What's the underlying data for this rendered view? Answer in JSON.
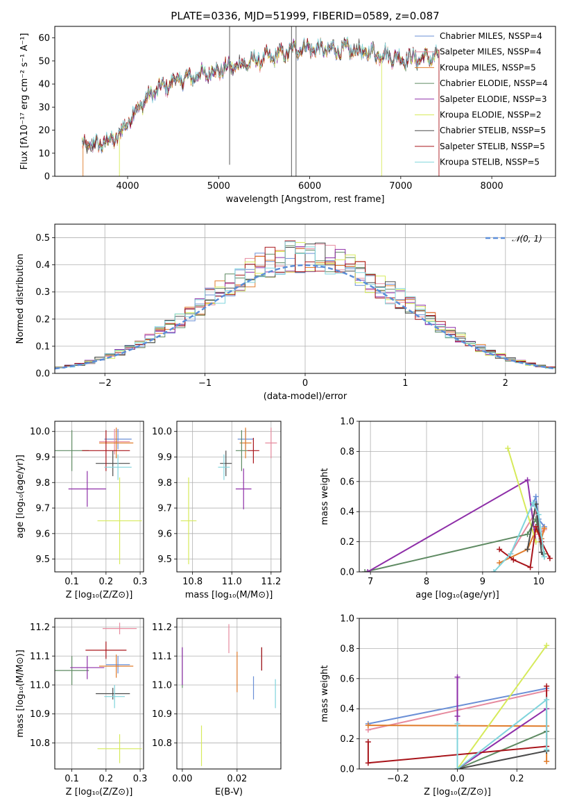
{
  "title": "PLATE=0336, MJD=51999, FIBERID=0589, z=0.087",
  "colors": {
    "chabrier_miles": "#6a8fd6",
    "salpeter_miles": "#e68a9e",
    "kroupa_miles": "#e07b2a",
    "chabrier_elodie": "#5e8a62",
    "salpeter_elodie": "#8e2ea8",
    "kroupa_elodie": "#d6ea5a",
    "chabrier_stelib": "#4a4a4a",
    "salpeter_stelib": "#a8141a",
    "kroupa_stelib": "#7fd4dc",
    "normal": "#5b8ed8",
    "grid": "#b0b0b0"
  },
  "chart_data": [
    {
      "type": "line",
      "name": "spectrum",
      "xlabel": "wavelength [Angstrom, rest frame]",
      "ylabel": "Flux [fλ10⁻¹⁷ erg cm⁻² s⁻¹ A⁻¹]",
      "xlim": [
        3200,
        8700
      ],
      "ylim": [
        0,
        65
      ],
      "xticks": [
        4000,
        5000,
        6000,
        7000,
        8000
      ],
      "yticks": [
        0,
        10,
        20,
        30,
        40,
        50,
        60
      ],
      "grid": false,
      "legend_position": "top-right",
      "legend": [
        "Chabrier MILES, N_SSP=4",
        "Salpeter MILES, N_SSP=4",
        "Kroupa MILES, N_SSP=5",
        "Chabrier ELODIE, N_SSP=4",
        "Salpeter ELODIE, N_SSP=3",
        "Kroupa ELODIE, N_SSP=2",
        "Chabrier STELIB, N_SSP=5",
        "Salpeter STELIB, N_SSP=5",
        "Kroupa STELIB, N_SSP=5"
      ],
      "continuum": [
        [
          3500,
          13
        ],
        [
          3700,
          14
        ],
        [
          3900,
          17
        ],
        [
          4000,
          24
        ],
        [
          4100,
          29
        ],
        [
          4300,
          37
        ],
        [
          4500,
          41
        ],
        [
          4800,
          44
        ],
        [
          5100,
          47
        ],
        [
          5400,
          50
        ],
        [
          5700,
          53
        ],
        [
          5900,
          56
        ],
        [
          6100,
          55
        ],
        [
          6400,
          55
        ],
        [
          6600,
          54
        ],
        [
          6800,
          53
        ],
        [
          7000,
          51
        ],
        [
          7200,
          51
        ],
        [
          7400,
          52
        ]
      ],
      "spikes": [
        {
          "x": 5120,
          "y1": 5,
          "y2": 65,
          "series": "chabrier_stelib"
        },
        {
          "x": 5800,
          "y1": 0,
          "y2": 65,
          "series": "chabrier_stelib"
        },
        {
          "x": 5850,
          "y1": 0,
          "y2": 65,
          "series": "chabrier_stelib"
        },
        {
          "x": 6790,
          "y1": 0,
          "y2": 52,
          "series": "kroupa_elodie"
        },
        {
          "x": 7420,
          "y1": 0,
          "y2": 55,
          "series": "salpeter_stelib"
        },
        {
          "x": 3910,
          "y1": 0,
          "y2": 17,
          "series": "kroupa_elodie"
        },
        {
          "x": 3510,
          "y1": 0,
          "y2": 14,
          "series": "kroupa_miles"
        }
      ]
    },
    {
      "type": "histogram",
      "name": "residuals",
      "xlabel": "(data-model)/error",
      "ylabel": "Normed distribution",
      "xlim": [
        -2.5,
        2.5
      ],
      "ylim": [
        0,
        0.55
      ],
      "xticks": [
        -2,
        -1,
        0,
        1,
        2
      ],
      "yticks": [
        0.0,
        0.1,
        0.2,
        0.3,
        0.4,
        0.5
      ],
      "grid": true,
      "legend_position": "top-right",
      "legend": [
        "𝒩(0, 1)"
      ],
      "bin_width": 0.1,
      "normal_curve": {
        "mean": 0,
        "sigma": 1
      }
    },
    {
      "type": "scatter",
      "name": "age_vs_Z",
      "xlabel": "Z [log₁₀(Z/Z⊙)]",
      "ylabel": "age  [log₁₀(age/yr)]",
      "xlim": [
        0.05,
        0.31
      ],
      "ylim": [
        9.45,
        10.04
      ],
      "xticks": [
        0.1,
        0.2,
        0.3
      ],
      "yticks": [
        9.5,
        9.6,
        9.7,
        9.8,
        9.9,
        10.0
      ],
      "grid": true,
      "points": [
        {
          "s": "chabrier_miles",
          "x": 0.235,
          "y": 9.97,
          "xerr": 0.04,
          "yerr": 0.04
        },
        {
          "s": "salpeter_miles",
          "x": 0.225,
          "y": 9.96,
          "xerr": 0.045,
          "yerr": 0.05
        },
        {
          "s": "kroupa_miles",
          "x": 0.23,
          "y": 9.955,
          "xerr": 0.05,
          "yerr": 0.06
        },
        {
          "s": "chabrier_elodie",
          "x": 0.1,
          "y": 9.925,
          "xerr": 0.05,
          "yerr": 0.08
        },
        {
          "s": "salpeter_elodie",
          "x": 0.145,
          "y": 9.775,
          "xerr": 0.055,
          "yerr": 0.07
        },
        {
          "s": "kroupa_elodie",
          "x": 0.24,
          "y": 9.65,
          "xerr": 0.065,
          "yerr": 0.17
        },
        {
          "s": "chabrier_stelib",
          "x": 0.22,
          "y": 9.875,
          "xerr": 0.05,
          "yerr": 0.05
        },
        {
          "s": "salpeter_stelib",
          "x": 0.2,
          "y": 9.925,
          "xerr": 0.07,
          "yerr": 0.08
        },
        {
          "s": "kroupa_stelib",
          "x": 0.235,
          "y": 9.86,
          "xerr": 0.04,
          "yerr": 0.05
        }
      ]
    },
    {
      "type": "scatter",
      "name": "age_vs_mass",
      "xlabel": "mass [log₁₀(M/M⊙)]",
      "ylabel": "",
      "xlim": [
        10.72,
        11.25
      ],
      "ylim": [
        9.45,
        10.04
      ],
      "xticks": [
        10.8,
        11.0,
        11.2
      ],
      "yticks": [
        9.5,
        9.6,
        9.7,
        9.8,
        9.9,
        10.0
      ],
      "grid": true,
      "points": [
        {
          "s": "chabrier_miles",
          "x": 11.07,
          "y": 9.97,
          "xerr": 0.04,
          "yerr": 0.04
        },
        {
          "s": "salpeter_miles",
          "x": 11.2,
          "y": 9.955,
          "xerr": 0.03,
          "yerr": 0.06
        },
        {
          "s": "kroupa_miles",
          "x": 11.07,
          "y": 9.955,
          "xerr": 0.03,
          "yerr": 0.06
        },
        {
          "s": "chabrier_elodie",
          "x": 11.05,
          "y": 9.925,
          "xerr": 0.03,
          "yerr": 0.08
        },
        {
          "s": "salpeter_elodie",
          "x": 11.06,
          "y": 9.775,
          "xerr": 0.04,
          "yerr": 0.08
        },
        {
          "s": "kroupa_elodie",
          "x": 10.78,
          "y": 9.65,
          "xerr": 0.04,
          "yerr": 0.17
        },
        {
          "s": "chabrier_stelib",
          "x": 10.97,
          "y": 9.875,
          "xerr": 0.03,
          "yerr": 0.05
        },
        {
          "s": "salpeter_stelib",
          "x": 11.11,
          "y": 9.925,
          "xerr": 0.03,
          "yerr": 0.05
        },
        {
          "s": "kroupa_stelib",
          "x": 10.96,
          "y": 9.86,
          "xerr": 0.03,
          "yerr": 0.05
        }
      ]
    },
    {
      "type": "line",
      "name": "massweight_vs_age",
      "xlabel": "age  [log₁₀(age/yr)]",
      "ylabel": "mass weight",
      "xlim": [
        6.8,
        10.3
      ],
      "ylim": [
        0,
        1.0
      ],
      "xticks": [
        7,
        8,
        9,
        10
      ],
      "yticks": [
        0.0,
        0.2,
        0.4,
        0.6,
        0.8,
        1.0
      ],
      "grid": true,
      "series": [
        {
          "s": "chabrier_miles",
          "x": [
            9.9,
            9.95,
            10.0,
            10.1
          ],
          "y": [
            0.45,
            0.5,
            0.35,
            0.3
          ]
        },
        {
          "s": "salpeter_miles",
          "x": [
            9.5,
            9.95,
            10.0,
            10.1
          ],
          "y": [
            0.12,
            0.4,
            0.25,
            0.28
          ]
        },
        {
          "s": "kroupa_miles",
          "x": [
            9.3,
            9.8,
            9.95,
            10.05,
            10.1
          ],
          "y": [
            0.06,
            0.15,
            0.28,
            0.22,
            0.29
          ]
        },
        {
          "s": "chabrier_elodie",
          "x": [
            6.9,
            9.8,
            9.95,
            10.1
          ],
          "y": [
            0.0,
            0.25,
            0.35,
            0.12
          ]
        },
        {
          "s": "salpeter_elodie",
          "x": [
            6.95,
            9.8,
            9.95
          ],
          "y": [
            0.0,
            0.61,
            0.2
          ]
        },
        {
          "s": "kroupa_elodie",
          "x": [
            9.45,
            9.95
          ],
          "y": [
            0.82,
            0.2
          ]
        },
        {
          "s": "chabrier_stelib",
          "x": [
            9.8,
            9.95,
            10.05,
            10.1
          ],
          "y": [
            0.15,
            0.45,
            0.13,
            0.1
          ]
        },
        {
          "s": "salpeter_stelib",
          "x": [
            9.3,
            9.55,
            9.85,
            9.95,
            10.05,
            10.2
          ],
          "y": [
            0.15,
            0.08,
            0.03,
            0.3,
            0.2,
            0.09
          ]
        },
        {
          "s": "kroupa_stelib",
          "x": [
            9.2,
            9.5,
            9.9,
            10.0,
            10.1
          ],
          "y": [
            0.0,
            0.12,
            0.46,
            0.38,
            0.1
          ]
        }
      ]
    },
    {
      "type": "scatter",
      "name": "mass_vs_Z",
      "xlabel": "Z [log₁₀(Z/Z⊙)]",
      "ylabel": "mass [log₁₀(M/M⊙)]",
      "xlim": [
        0.05,
        0.31
      ],
      "ylim": [
        10.71,
        11.23
      ],
      "xticks": [
        0.1,
        0.2,
        0.3
      ],
      "yticks": [
        10.8,
        10.9,
        11.0,
        11.1,
        11.2
      ],
      "grid": true,
      "points": [
        {
          "s": "chabrier_miles",
          "x": 0.235,
          "y": 11.07,
          "xerr": 0.035,
          "yerr": 0.03
        },
        {
          "s": "salpeter_miles",
          "x": 0.24,
          "y": 11.195,
          "xerr": 0.05,
          "yerr": 0.02
        },
        {
          "s": "kroupa_miles",
          "x": 0.23,
          "y": 11.065,
          "xerr": 0.05,
          "yerr": 0.04
        },
        {
          "s": "chabrier_elodie",
          "x": 0.1,
          "y": 11.05,
          "xerr": 0.05,
          "yerr": 0.05
        },
        {
          "s": "salpeter_elodie",
          "x": 0.145,
          "y": 11.06,
          "xerr": 0.05,
          "yerr": 0.04
        },
        {
          "s": "kroupa_elodie",
          "x": 0.24,
          "y": 10.78,
          "xerr": 0.065,
          "yerr": 0.05
        },
        {
          "s": "chabrier_stelib",
          "x": 0.22,
          "y": 10.97,
          "xerr": 0.05,
          "yerr": 0.02
        },
        {
          "s": "salpeter_stelib",
          "x": 0.2,
          "y": 11.12,
          "xerr": 0.06,
          "yerr": 0.03
        },
        {
          "s": "kroupa_stelib",
          "x": 0.225,
          "y": 10.96,
          "xerr": 0.03,
          "yerr": 0.04
        }
      ]
    },
    {
      "type": "scatter",
      "name": "mass_vs_ebv",
      "xlabel": "E(B-V)",
      "ylabel": "",
      "xlim": [
        -0.002,
        0.036
      ],
      "ylim": [
        10.71,
        11.23
      ],
      "xticks": [
        0.0,
        0.02
      ],
      "yticks": [
        10.8,
        10.9,
        11.0,
        11.1,
        11.2
      ],
      "grid": true,
      "points": [
        {
          "s": "chabrier_miles",
          "x": 0.026,
          "y": 10.99,
          "yerr": 0.04
        },
        {
          "s": "salpeter_miles",
          "x": 0.017,
          "y": 11.16,
          "yerr": 0.05
        },
        {
          "s": "kroupa_miles",
          "x": 0.02,
          "y": 11.045,
          "yerr": 0.07
        },
        {
          "s": "chabrier_elodie",
          "x": 0.0,
          "y": 11.06,
          "yerr": 0.07
        },
        {
          "s": "salpeter_elodie",
          "x": 0.0,
          "y": 11.065,
          "yerr": 0.065
        },
        {
          "s": "kroupa_elodie",
          "x": 0.007,
          "y": 10.79,
          "yerr": 0.07
        },
        {
          "s": "chabrier_stelib",
          "x": 0.029,
          "y": 11.09,
          "yerr": 0.04
        },
        {
          "s": "salpeter_stelib",
          "x": 0.029,
          "y": 11.09,
          "yerr": 0.04
        },
        {
          "s": "kroupa_stelib",
          "x": 0.034,
          "y": 10.97,
          "yerr": 0.05
        }
      ]
    },
    {
      "type": "line",
      "name": "massweight_vs_Z",
      "xlabel": "Z [log₁₀(Z/Z⊙)]",
      "ylabel": "mass weight",
      "xlim": [
        -0.33,
        0.33
      ],
      "ylim": [
        0,
        1.0
      ],
      "xticks": [
        -0.2,
        0.0,
        0.2
      ],
      "yticks": [
        0.0,
        0.2,
        0.4,
        0.6,
        0.8,
        1.0
      ],
      "grid": true,
      "series": [
        {
          "s": "chabrier_miles",
          "x": [
            -0.3,
            0.3
          ],
          "y": [
            0.3,
            0.535
          ]
        },
        {
          "s": "salpeter_miles",
          "x": [
            -0.3,
            0.3
          ],
          "y": [
            0.26,
            0.52
          ]
        },
        {
          "s": "kroupa_miles",
          "x": [
            -0.3,
            0.3,
            0.3
          ],
          "y": [
            0.29,
            0.285,
            0.05
          ]
        },
        {
          "s": "chabrier_elodie",
          "x": [
            0.0,
            0.3,
            0.3
          ],
          "y": [
            0.0,
            0.25,
            0.12
          ]
        },
        {
          "s": "salpeter_elodie",
          "x": [
            0.0,
            0.0,
            0.0,
            0.3
          ],
          "y": [
            0.61,
            0.35,
            0.0,
            0.4
          ]
        },
        {
          "s": "kroupa_elodie",
          "x": [
            0.0,
            0.3
          ],
          "y": [
            0.0,
            0.82
          ]
        },
        {
          "s": "chabrier_stelib",
          "x": [
            0.0,
            0.3
          ],
          "y": [
            0.0,
            0.12
          ]
        },
        {
          "s": "salpeter_stelib",
          "x": [
            -0.3,
            -0.3,
            0.3,
            0.3
          ],
          "y": [
            0.18,
            0.04,
            0.15,
            0.55
          ]
        },
        {
          "s": "kroupa_stelib",
          "x": [
            0.0,
            0.0,
            0.3,
            0.3
          ],
          "y": [
            0.3,
            0.0,
            0.46,
            0.13
          ]
        }
      ]
    }
  ]
}
